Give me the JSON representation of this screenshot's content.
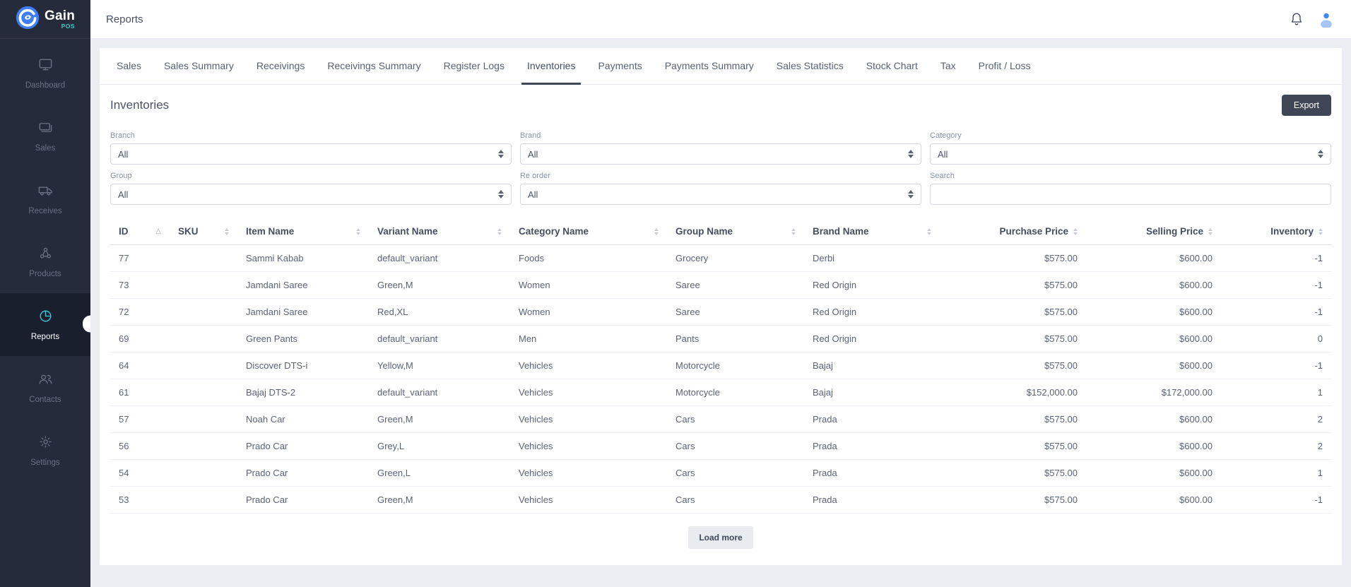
{
  "colors": {
    "sidebar-bg": "#262b3b",
    "sidebar-active-bg": "#1a1f2d",
    "sidebar-text": "#6b7284",
    "accent": "#3fc8dc",
    "logo-blue": "#3d7ef7",
    "logo-pos": "#35cfc0",
    "page-bg": "#ebedf2",
    "export-bg": "#3f4656",
    "avatar-head": "#4286f5",
    "avatar-body": "#a5c4fa",
    "text-muted": "#8a93a3",
    "border": "#e9ebf1"
  },
  "brand": {
    "name": "Gain",
    "sub": "POS"
  },
  "header": {
    "title": "Reports"
  },
  "sidebar": {
    "items": [
      {
        "id": "dashboard",
        "label": "Dashboard",
        "icon": "dashboard-icon",
        "active": false
      },
      {
        "id": "sales",
        "label": "Sales",
        "icon": "sales-card-icon",
        "active": false
      },
      {
        "id": "receives",
        "label": "Receives",
        "icon": "truck-icon",
        "active": false
      },
      {
        "id": "products",
        "label": "Products",
        "icon": "molecule-icon",
        "active": false
      },
      {
        "id": "reports",
        "label": "Reports",
        "icon": "pie-chart-icon",
        "active": true
      },
      {
        "id": "contacts",
        "label": "Contacts",
        "icon": "people-icon",
        "active": false
      },
      {
        "id": "settings",
        "label": "Settings",
        "icon": "gear-icon",
        "active": false
      }
    ]
  },
  "tabs": [
    {
      "id": "sales",
      "label": "Sales",
      "active": false
    },
    {
      "id": "sales-summary",
      "label": "Sales Summary",
      "active": false
    },
    {
      "id": "receivings",
      "label": "Receivings",
      "active": false
    },
    {
      "id": "receivings-summary",
      "label": "Receivings Summary",
      "active": false
    },
    {
      "id": "register-logs",
      "label": "Register Logs",
      "active": false
    },
    {
      "id": "inventories",
      "label": "Inventories",
      "active": true
    },
    {
      "id": "payments",
      "label": "Payments",
      "active": false
    },
    {
      "id": "payments-summary",
      "label": "Payments Summary",
      "active": false
    },
    {
      "id": "sales-statistics",
      "label": "Sales Statistics",
      "active": false
    },
    {
      "id": "stock-chart",
      "label": "Stock Chart",
      "active": false
    },
    {
      "id": "tax",
      "label": "Tax",
      "active": false
    },
    {
      "id": "profit-loss",
      "label": "Profit / Loss",
      "active": false
    }
  ],
  "page": {
    "title": "Inventories",
    "export_label": "Export",
    "load_more_label": "Load more"
  },
  "filters": [
    {
      "id": "branch",
      "label": "Branch",
      "type": "select",
      "value": "All"
    },
    {
      "id": "brand",
      "label": "Brand",
      "type": "select",
      "value": "All"
    },
    {
      "id": "category",
      "label": "Category",
      "type": "select",
      "value": "All"
    },
    {
      "id": "group",
      "label": "Group",
      "type": "select",
      "value": "All"
    },
    {
      "id": "re-order",
      "label": "Re order",
      "type": "select",
      "value": "All"
    },
    {
      "id": "search",
      "label": "Search",
      "type": "text",
      "value": ""
    }
  ],
  "table": {
    "columns": [
      {
        "key": "id",
        "label": "ID",
        "align": "left",
        "sort": "asc"
      },
      {
        "key": "sku",
        "label": "SKU",
        "align": "left",
        "sort": "both"
      },
      {
        "key": "item_name",
        "label": "Item Name",
        "align": "left",
        "sort": "both"
      },
      {
        "key": "variant_name",
        "label": "Variant Name",
        "align": "left",
        "sort": "both"
      },
      {
        "key": "category_name",
        "label": "Category Name",
        "align": "left",
        "sort": "both"
      },
      {
        "key": "group_name",
        "label": "Group Name",
        "align": "left",
        "sort": "both"
      },
      {
        "key": "brand_name",
        "label": "Brand Name",
        "align": "left",
        "sort": "both"
      },
      {
        "key": "purchase_price",
        "label": "Purchase Price",
        "align": "right",
        "sort": "both"
      },
      {
        "key": "selling_price",
        "label": "Selling Price",
        "align": "right",
        "sort": "both"
      },
      {
        "key": "inventory",
        "label": "Inventory",
        "align": "right",
        "sort": "both"
      }
    ],
    "rows": [
      [
        "77",
        "",
        "Sammi Kabab",
        "default_variant",
        "Foods",
        "Grocery",
        "Derbi",
        "$575.00",
        "$600.00",
        "-1"
      ],
      [
        "73",
        "",
        "Jamdani Saree",
        "Green,M",
        "Women",
        "Saree",
        "Red Origin",
        "$575.00",
        "$600.00",
        "-1"
      ],
      [
        "72",
        "",
        "Jamdani Saree",
        "Red,XL",
        "Women",
        "Saree",
        "Red Origin",
        "$575.00",
        "$600.00",
        "-1"
      ],
      [
        "69",
        "",
        "Green Pants",
        "default_variant",
        "Men",
        "Pants",
        "Red Origin",
        "$575.00",
        "$600.00",
        "0"
      ],
      [
        "64",
        "",
        "Discover DTS-i",
        "Yellow,M",
        "Vehicles",
        "Motorcycle",
        "Bajaj",
        "$575.00",
        "$600.00",
        "-1"
      ],
      [
        "61",
        "",
        "Bajaj DTS-2",
        "default_variant",
        "Vehicles",
        "Motorcycle",
        "Bajaj",
        "$152,000.00",
        "$172,000.00",
        "1"
      ],
      [
        "57",
        "",
        "Noah Car",
        "Green,M",
        "Vehicles",
        "Cars",
        "Prada",
        "$575.00",
        "$600.00",
        "2"
      ],
      [
        "56",
        "",
        "Prado Car",
        "Grey,L",
        "Vehicles",
        "Cars",
        "Prada",
        "$575.00",
        "$600.00",
        "2"
      ],
      [
        "54",
        "",
        "Prado Car",
        "Green,L",
        "Vehicles",
        "Cars",
        "Prada",
        "$575.00",
        "$600.00",
        "1"
      ],
      [
        "53",
        "",
        "Prado Car",
        "Green,M",
        "Vehicles",
        "Cars",
        "Prada",
        "$575.00",
        "$600.00",
        "-1"
      ]
    ]
  }
}
